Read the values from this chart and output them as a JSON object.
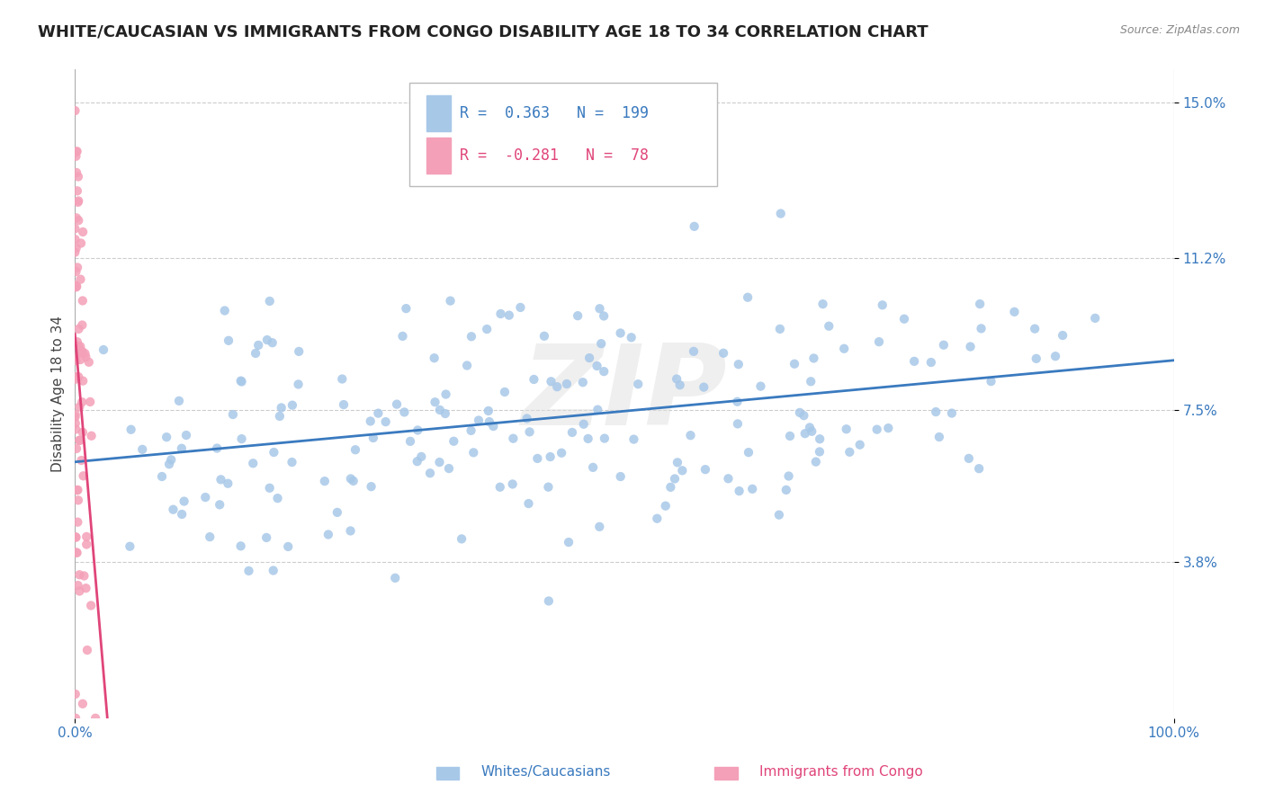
{
  "title": "WHITE/CAUCASIAN VS IMMIGRANTS FROM CONGO DISABILITY AGE 18 TO 34 CORRELATION CHART",
  "source": "Source: ZipAtlas.com",
  "ylabel": "Disability Age 18 to 34",
  "xlim": [
    0.0,
    1.0
  ],
  "ylim": [
    0.0,
    0.158
  ],
  "yticks": [
    0.038,
    0.075,
    0.112,
    0.15
  ],
  "ytick_labels": [
    "3.8%",
    "7.5%",
    "11.2%",
    "15.0%"
  ],
  "xticks": [
    0.0,
    1.0
  ],
  "xtick_labels": [
    "0.0%",
    "100.0%"
  ],
  "blue_R": 0.363,
  "blue_N": 199,
  "pink_R": -0.281,
  "pink_N": 78,
  "blue_color": "#a8c8e8",
  "pink_color": "#f4a0b8",
  "blue_line_color": "#3a7abf",
  "pink_line_color": "#e0457a",
  "legend_label_blue": "Whites/Caucasians",
  "legend_label_pink": "Immigrants from Congo",
  "watermark": "ZIP",
  "background_color": "#ffffff",
  "title_fontsize": 13,
  "axis_label_fontsize": 11,
  "tick_fontsize": 11
}
